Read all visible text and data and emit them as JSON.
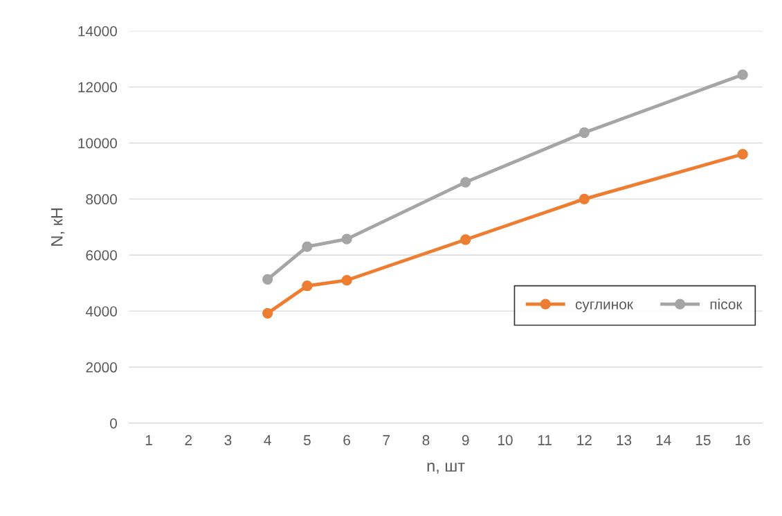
{
  "chart_data": {
    "type": "line",
    "xlabel": "n, шт",
    "ylabel": "N, кН",
    "categories": [
      "1",
      "2",
      "3",
      "4",
      "5",
      "6",
      "7",
      "8",
      "9",
      "10",
      "11",
      "12",
      "13",
      "14",
      "15",
      "16"
    ],
    "series": [
      {
        "name": "суглинок",
        "color": "#ed7d31",
        "values": [
          null,
          null,
          null,
          3920,
          4900,
          5100,
          null,
          null,
          6550,
          null,
          null,
          8000,
          null,
          null,
          null,
          9600
        ]
      },
      {
        "name": "пісок",
        "color": "#a5a5a5",
        "values": [
          null,
          null,
          null,
          5130,
          6300,
          6570,
          null,
          null,
          8600,
          null,
          null,
          10370,
          null,
          null,
          null,
          12440
        ]
      }
    ],
    "ylim": [
      0,
      14000
    ],
    "yticks": [
      0,
      2000,
      4000,
      6000,
      8000,
      10000,
      12000,
      14000
    ],
    "grid": "y",
    "legend": "right",
    "marker": "circle",
    "line_style": "solid"
  }
}
